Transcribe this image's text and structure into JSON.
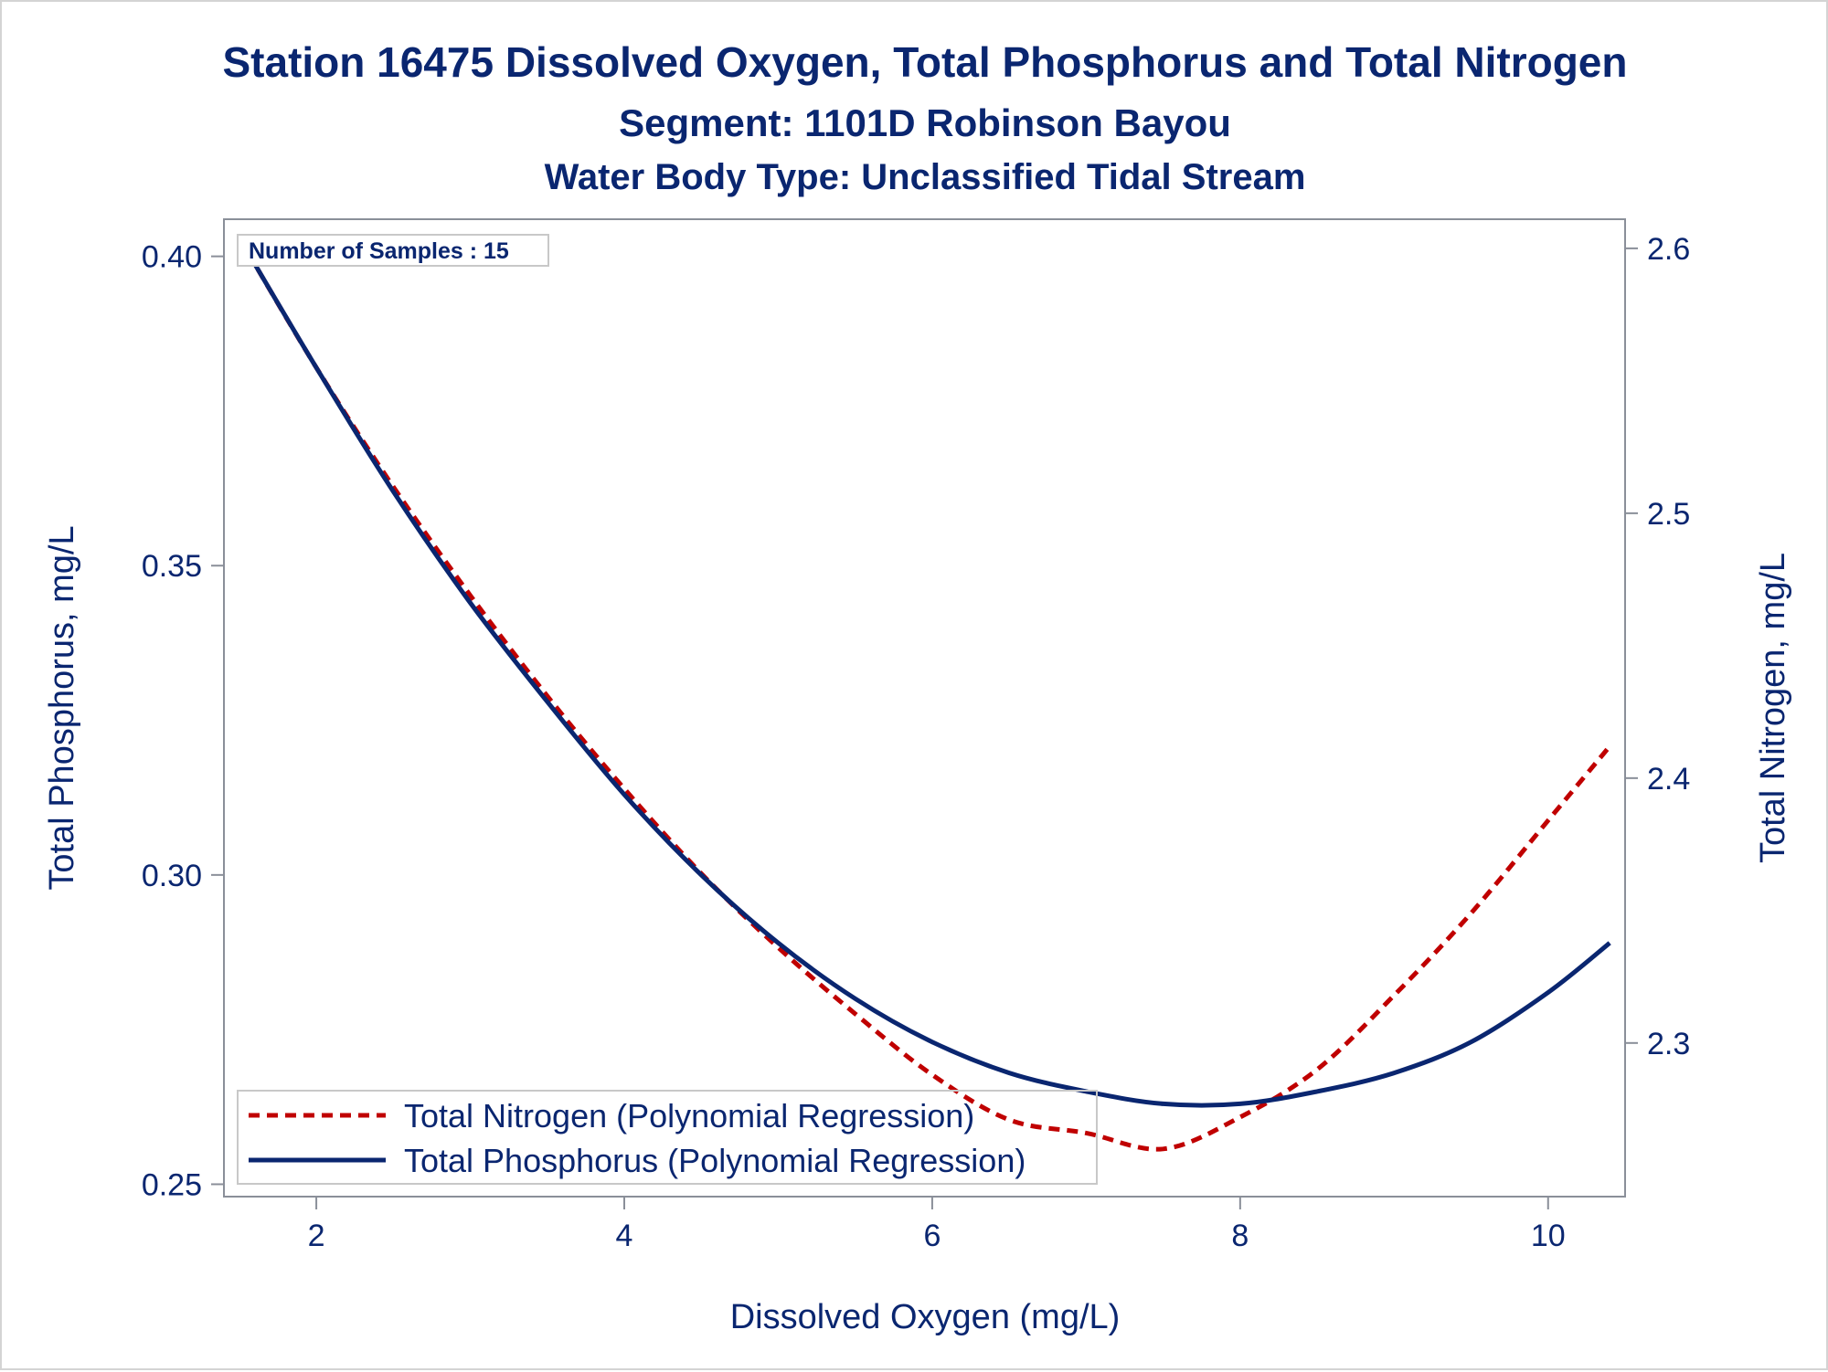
{
  "chart_data": {
    "type": "line",
    "title": "Station 16475  Dissolved Oxygen, Total Phosphorus and Total Nitrogen",
    "subtitle": "Segment: 1101D  Robinson Bayou",
    "subtitle2": "Water Body Type: Unclassified Tidal Stream",
    "xlabel": "Dissolved Oxygen (mg/L)",
    "ylabel": "Total Phosphorus, mg/L",
    "y2label": "Total Nitrogen, mg/L",
    "xlim": [
      1.4,
      10.5
    ],
    "ylim": [
      0.248,
      0.406
    ],
    "y2lim": [
      2.242,
      2.611
    ],
    "xticks": [
      "2",
      "4",
      "6",
      "8",
      "10"
    ],
    "yticks": [
      "0.25",
      "0.30",
      "0.35",
      "0.40"
    ],
    "y2ticks": [
      "2.3",
      "2.4",
      "2.5",
      "2.6"
    ],
    "grid": false,
    "legend_position": "bottom-left",
    "annotation": "Number of Samples : 15",
    "series": [
      {
        "name": "Total Nitrogen (Polynomial Regression)",
        "axis": "right",
        "style": "dashed",
        "color": "#c00000",
        "x": [
          1.5,
          2.0,
          2.5,
          3.0,
          3.5,
          4.0,
          4.5,
          5.0,
          5.5,
          6.0,
          6.5,
          7.0,
          7.5,
          8.0,
          8.5,
          9.0,
          9.5,
          10.0,
          10.4
        ],
        "y": [
          2.604,
          2.555,
          2.51,
          2.469,
          2.431,
          2.396,
          2.364,
          2.336,
          2.311,
          2.288,
          2.271,
          2.266,
          2.26,
          2.272,
          2.29,
          2.318,
          2.349,
          2.384,
          2.412
        ]
      },
      {
        "name": "Total Phosphorus (Polynomial Regression)",
        "axis": "left",
        "style": "solid",
        "color": "#0a2670",
        "x": [
          1.5,
          2.0,
          2.5,
          3.0,
          3.5,
          4.0,
          4.5,
          5.0,
          5.5,
          6.0,
          6.5,
          7.0,
          7.5,
          8.0,
          8.5,
          9.0,
          9.5,
          10.0,
          10.4
        ],
        "y": [
          0.403,
          0.382,
          0.362,
          0.344,
          0.328,
          0.313,
          0.3,
          0.289,
          0.28,
          0.273,
          0.268,
          0.265,
          0.263,
          0.263,
          0.265,
          0.268,
          0.273,
          0.281,
          0.289
        ]
      }
    ]
  }
}
